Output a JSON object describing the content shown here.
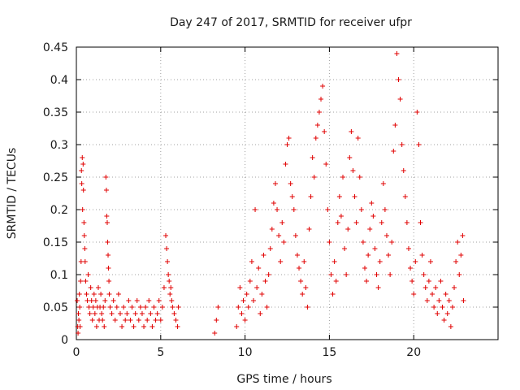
{
  "chart_data": {
    "type": "scatter",
    "title": "Day 247 of 2017, SRMTID for receiver ufpr",
    "xlabel": "GPS time / hours",
    "ylabel": "SRMTID / TECUs",
    "xlim": [
      0,
      25.0
    ],
    "ylim": [
      0,
      0.45
    ],
    "xticks": [
      0,
      5,
      10,
      15,
      20
    ],
    "xtick_labels": [
      "0",
      "5",
      "10",
      "15",
      "20"
    ],
    "yticks": [
      0,
      0.05,
      0.1,
      0.15,
      0.2,
      0.25,
      0.3,
      0.35,
      0.4,
      0.45
    ],
    "ytick_labels": [
      "0",
      "0.05",
      "0.1",
      "0.15",
      "0.2",
      "0.25",
      "0.3",
      "0.35",
      "0.4",
      "0.45"
    ],
    "grid": true,
    "marker": "plus",
    "color": "#e00000",
    "series": [
      {
        "name": "SRMTID",
        "points": [
          [
            0.05,
            0.06
          ],
          [
            0.08,
            0.02
          ],
          [
            0.1,
            0.01
          ],
          [
            0.12,
            0.04
          ],
          [
            0.15,
            0.03
          ],
          [
            0.18,
            0.07
          ],
          [
            0.2,
            0.05
          ],
          [
            0.22,
            0.02
          ],
          [
            0.25,
            0.09
          ],
          [
            0.28,
            0.12
          ],
          [
            0.3,
            0.26
          ],
          [
            0.32,
            0.24
          ],
          [
            0.35,
            0.28
          ],
          [
            0.37,
            0.2
          ],
          [
            0.4,
            0.27
          ],
          [
            0.42,
            0.23
          ],
          [
            0.45,
            0.18
          ],
          [
            0.47,
            0.16
          ],
          [
            0.5,
            0.14
          ],
          [
            0.52,
            0.12
          ],
          [
            0.55,
            0.09
          ],
          [
            0.6,
            0.07
          ],
          [
            0.65,
            0.06
          ],
          [
            0.7,
            0.1
          ],
          [
            0.75,
            0.05
          ],
          [
            0.8,
            0.04
          ],
          [
            0.85,
            0.08
          ],
          [
            0.9,
            0.06
          ],
          [
            0.95,
            0.03
          ],
          [
            1.0,
            0.05
          ],
          [
            1.05,
            0.07
          ],
          [
            1.1,
            0.04
          ],
          [
            1.15,
            0.06
          ],
          [
            1.2,
            0.02
          ],
          [
            1.25,
            0.05
          ],
          [
            1.3,
            0.08
          ],
          [
            1.35,
            0.03
          ],
          [
            1.4,
            0.05
          ],
          [
            1.45,
            0.07
          ],
          [
            1.5,
            0.04
          ],
          [
            1.55,
            0.03
          ],
          [
            1.6,
            0.05
          ],
          [
            1.65,
            0.02
          ],
          [
            1.7,
            0.06
          ],
          [
            1.75,
            0.25
          ],
          [
            1.78,
            0.23
          ],
          [
            1.8,
            0.19
          ],
          [
            1.83,
            0.18
          ],
          [
            1.85,
            0.15
          ],
          [
            1.88,
            0.13
          ],
          [
            1.9,
            0.11
          ],
          [
            1.93,
            0.09
          ],
          [
            1.95,
            0.07
          ],
          [
            2.0,
            0.05
          ],
          [
            2.1,
            0.04
          ],
          [
            2.2,
            0.06
          ],
          [
            2.3,
            0.03
          ],
          [
            2.4,
            0.05
          ],
          [
            2.5,
            0.07
          ],
          [
            2.6,
            0.04
          ],
          [
            2.7,
            0.02
          ],
          [
            2.8,
            0.05
          ],
          [
            2.9,
            0.03
          ],
          [
            3.0,
            0.04
          ],
          [
            3.1,
            0.06
          ],
          [
            3.2,
            0.03
          ],
          [
            3.3,
            0.05
          ],
          [
            3.4,
            0.02
          ],
          [
            3.5,
            0.04
          ],
          [
            3.6,
            0.06
          ],
          [
            3.7,
            0.03
          ],
          [
            3.8,
            0.05
          ],
          [
            3.9,
            0.04
          ],
          [
            4.0,
            0.02
          ],
          [
            4.1,
            0.05
          ],
          [
            4.2,
            0.03
          ],
          [
            4.3,
            0.06
          ],
          [
            4.4,
            0.04
          ],
          [
            4.5,
            0.02
          ],
          [
            4.6,
            0.05
          ],
          [
            4.7,
            0.03
          ],
          [
            4.8,
            0.04
          ],
          [
            4.9,
            0.06
          ],
          [
            5.0,
            0.03
          ],
          [
            5.1,
            0.05
          ],
          [
            5.2,
            0.08
          ],
          [
            5.3,
            0.16
          ],
          [
            5.35,
            0.14
          ],
          [
            5.4,
            0.12
          ],
          [
            5.45,
            0.1
          ],
          [
            5.5,
            0.09
          ],
          [
            5.55,
            0.07
          ],
          [
            5.6,
            0.08
          ],
          [
            5.65,
            0.06
          ],
          [
            5.7,
            0.05
          ],
          [
            5.8,
            0.04
          ],
          [
            5.9,
            0.03
          ],
          [
            6.0,
            0.02
          ],
          [
            6.05,
            0.05
          ],
          [
            8.2,
            0.01
          ],
          [
            8.3,
            0.03
          ],
          [
            8.4,
            0.05
          ],
          [
            9.5,
            0.02
          ],
          [
            9.6,
            0.05
          ],
          [
            9.7,
            0.08
          ],
          [
            9.8,
            0.04
          ],
          [
            9.9,
            0.06
          ],
          [
            10.0,
            0.03
          ],
          [
            10.1,
            0.07
          ],
          [
            10.2,
            0.05
          ],
          [
            10.3,
            0.09
          ],
          [
            10.4,
            0.12
          ],
          [
            10.5,
            0.06
          ],
          [
            10.6,
            0.2
          ],
          [
            10.7,
            0.08
          ],
          [
            10.8,
            0.11
          ],
          [
            10.9,
            0.04
          ],
          [
            11.0,
            0.07
          ],
          [
            11.1,
            0.13
          ],
          [
            11.2,
            0.09
          ],
          [
            11.3,
            0.05
          ],
          [
            11.4,
            0.1
          ],
          [
            11.5,
            0.14
          ],
          [
            11.6,
            0.17
          ],
          [
            11.7,
            0.21
          ],
          [
            11.8,
            0.24
          ],
          [
            11.9,
            0.2
          ],
          [
            12.0,
            0.16
          ],
          [
            12.1,
            0.12
          ],
          [
            12.2,
            0.18
          ],
          [
            12.3,
            0.15
          ],
          [
            12.4,
            0.27
          ],
          [
            12.5,
            0.3
          ],
          [
            12.6,
            0.31
          ],
          [
            12.7,
            0.24
          ],
          [
            12.8,
            0.22
          ],
          [
            12.9,
            0.2
          ],
          [
            13.0,
            0.16
          ],
          [
            13.1,
            0.13
          ],
          [
            13.2,
            0.11
          ],
          [
            13.3,
            0.09
          ],
          [
            13.4,
            0.07
          ],
          [
            13.5,
            0.12
          ],
          [
            13.6,
            0.08
          ],
          [
            13.7,
            0.05
          ],
          [
            13.8,
            0.17
          ],
          [
            13.9,
            0.22
          ],
          [
            14.0,
            0.28
          ],
          [
            14.1,
            0.25
          ],
          [
            14.2,
            0.31
          ],
          [
            14.3,
            0.33
          ],
          [
            14.4,
            0.35
          ],
          [
            14.5,
            0.37
          ],
          [
            14.6,
            0.39
          ],
          [
            14.7,
            0.32
          ],
          [
            14.8,
            0.27
          ],
          [
            14.9,
            0.2
          ],
          [
            15.0,
            0.15
          ],
          [
            15.1,
            0.1
          ],
          [
            15.2,
            0.07
          ],
          [
            15.3,
            0.12
          ],
          [
            15.4,
            0.09
          ],
          [
            15.5,
            0.18
          ],
          [
            15.6,
            0.22
          ],
          [
            15.7,
            0.19
          ],
          [
            15.8,
            0.25
          ],
          [
            15.9,
            0.14
          ],
          [
            16.0,
            0.1
          ],
          [
            16.1,
            0.17
          ],
          [
            16.2,
            0.28
          ],
          [
            16.3,
            0.32
          ],
          [
            16.4,
            0.26
          ],
          [
            16.5,
            0.22
          ],
          [
            16.6,
            0.18
          ],
          [
            16.7,
            0.31
          ],
          [
            16.8,
            0.25
          ],
          [
            16.9,
            0.2
          ],
          [
            17.0,
            0.15
          ],
          [
            17.1,
            0.11
          ],
          [
            17.2,
            0.09
          ],
          [
            17.3,
            0.13
          ],
          [
            17.4,
            0.17
          ],
          [
            17.5,
            0.21
          ],
          [
            17.6,
            0.19
          ],
          [
            17.7,
            0.14
          ],
          [
            17.8,
            0.1
          ],
          [
            17.9,
            0.08
          ],
          [
            18.0,
            0.12
          ],
          [
            18.1,
            0.18
          ],
          [
            18.2,
            0.24
          ],
          [
            18.3,
            0.2
          ],
          [
            18.4,
            0.16
          ],
          [
            18.5,
            0.13
          ],
          [
            18.6,
            0.1
          ],
          [
            18.7,
            0.15
          ],
          [
            18.8,
            0.29
          ],
          [
            18.9,
            0.33
          ],
          [
            19.0,
            0.44
          ],
          [
            19.1,
            0.4
          ],
          [
            19.2,
            0.37
          ],
          [
            19.3,
            0.3
          ],
          [
            19.4,
            0.26
          ],
          [
            19.5,
            0.22
          ],
          [
            19.6,
            0.18
          ],
          [
            19.7,
            0.14
          ],
          [
            19.8,
            0.11
          ],
          [
            19.9,
            0.09
          ],
          [
            20.0,
            0.07
          ],
          [
            20.1,
            0.12
          ],
          [
            20.2,
            0.35
          ],
          [
            20.3,
            0.3
          ],
          [
            20.4,
            0.18
          ],
          [
            20.5,
            0.13
          ],
          [
            20.6,
            0.1
          ],
          [
            20.7,
            0.08
          ],
          [
            20.8,
            0.06
          ],
          [
            20.9,
            0.09
          ],
          [
            21.0,
            0.12
          ],
          [
            21.1,
            0.07
          ],
          [
            21.2,
            0.05
          ],
          [
            21.3,
            0.08
          ],
          [
            21.4,
            0.04
          ],
          [
            21.5,
            0.06
          ],
          [
            21.6,
            0.09
          ],
          [
            21.7,
            0.05
          ],
          [
            21.8,
            0.03
          ],
          [
            21.9,
            0.07
          ],
          [
            22.0,
            0.04
          ],
          [
            22.1,
            0.06
          ],
          [
            22.2,
            0.02
          ],
          [
            22.3,
            0.05
          ],
          [
            22.4,
            0.08
          ],
          [
            22.5,
            0.12
          ],
          [
            22.6,
            0.15
          ],
          [
            22.7,
            0.1
          ],
          [
            22.8,
            0.13
          ],
          [
            22.9,
            0.16
          ],
          [
            22.95,
            0.06
          ]
        ]
      }
    ]
  }
}
